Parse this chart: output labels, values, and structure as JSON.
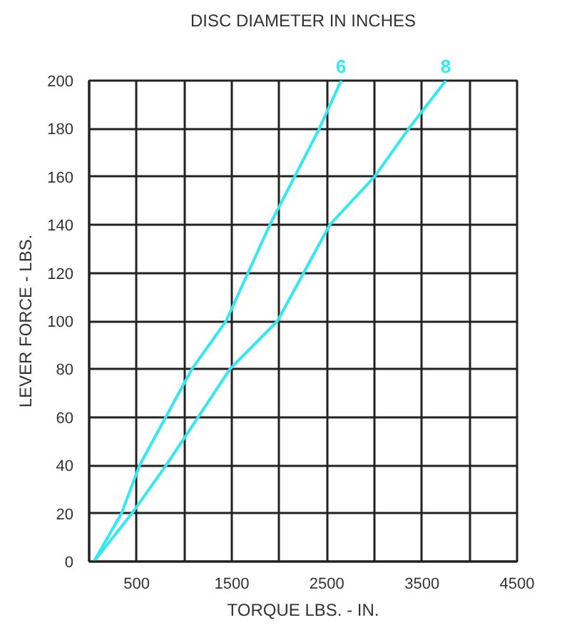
{
  "chart_data": {
    "type": "line",
    "title": "DISC DIAMETER IN INCHES",
    "xlabel": "TORQUE LBS. - IN.",
    "ylabel": "LEVER FORCE - LBS.",
    "series": [
      {
        "name": "6",
        "color": "#33e8f0",
        "x": [
          50,
          340,
          530,
          1080,
          1440,
          1900,
          2420,
          2650
        ],
        "values": [
          0,
          20,
          40,
          80,
          100,
          140,
          180,
          200
        ]
      },
      {
        "name": "8",
        "color": "#33e8f0",
        "x": [
          50,
          450,
          810,
          1480,
          1980,
          2530,
          3000,
          3360,
          3750
        ],
        "values": [
          0,
          20,
          40,
          80,
          100,
          140,
          160,
          180,
          200
        ]
      }
    ],
    "xlim": [
      0,
      4500
    ],
    "ylim": [
      0,
      200
    ],
    "xticks": [
      {
        "value": 0,
        "label": null
      },
      500,
      {
        "value": 1000,
        "label": null
      },
      1500,
      {
        "value": 2000,
        "label": null
      },
      2500,
      {
        "value": 3000,
        "label": null
      },
      3500,
      {
        "value": 4000,
        "label": null
      },
      4500
    ],
    "yticks": [
      0,
      20,
      40,
      60,
      80,
      100,
      120,
      140,
      160,
      180,
      200
    ],
    "grid": true,
    "marker": "none",
    "line_style": "solid"
  }
}
